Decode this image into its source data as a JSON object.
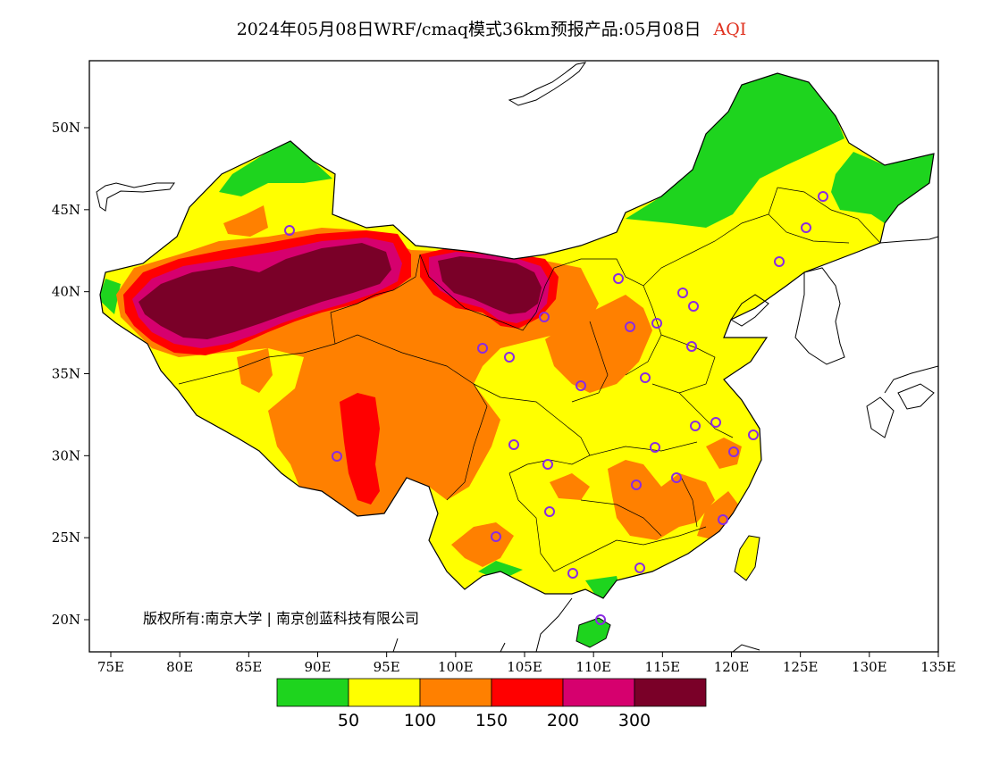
{
  "title": {
    "main": "2024年05月08日WRF/cmaq模式36km预报产品:05月08日",
    "variable": "AQI",
    "variable_color": "#e0301e"
  },
  "copyright": "版权所有:南京大学 | 南京创蓝科技有限公司",
  "axes": {
    "x_ticks": [
      "75E",
      "80E",
      "85E",
      "90E",
      "95E",
      "100E",
      "105E",
      "110E",
      "115E",
      "120E",
      "125E",
      "130E",
      "135E"
    ],
    "y_ticks": [
      "50N",
      "45N",
      "40N",
      "35N",
      "30N",
      "25N",
      "20N"
    ],
    "lon_range": [
      73,
      135
    ],
    "lat_range": [
      18,
      54
    ]
  },
  "legend": {
    "colors": [
      "#1ed41e",
      "#ffff00",
      "#ff8000",
      "#ff0000",
      "#d6006e",
      "#7a0028"
    ],
    "labels": [
      "50",
      "100",
      "150",
      "200",
      "300"
    ]
  },
  "colors": {
    "good": "#1ed41e",
    "moderate": "#ffff00",
    "sensitive": "#ff8000",
    "unhealthy": "#ff0000",
    "very_unhealthy": "#d6006e",
    "hazardous": "#7a0028",
    "station_marker": "#8a2be2"
  }
}
